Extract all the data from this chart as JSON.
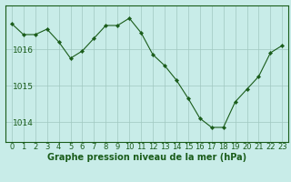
{
  "x": [
    0,
    1,
    2,
    3,
    4,
    5,
    6,
    7,
    8,
    9,
    10,
    11,
    12,
    13,
    14,
    15,
    16,
    17,
    18,
    19,
    20,
    21,
    22,
    23
  ],
  "y": [
    1016.7,
    1016.4,
    1016.4,
    1016.55,
    1016.2,
    1015.75,
    1015.95,
    1016.3,
    1016.65,
    1016.65,
    1016.85,
    1016.45,
    1015.85,
    1015.55,
    1015.15,
    1014.65,
    1014.1,
    1013.85,
    1013.85,
    1014.55,
    1014.9,
    1015.25,
    1015.9,
    1016.1
  ],
  "line_color": "#1a5c1a",
  "marker_color": "#1a5c1a",
  "bg_color": "#c8ece8",
  "grid_color": "#a0c8c0",
  "axis_color": "#1a5c1a",
  "xlabel": "Graphe pression niveau de la mer (hPa)",
  "ylabel_ticks": [
    1014,
    1015,
    1016
  ],
  "ylim": [
    1013.45,
    1017.2
  ],
  "xlim": [
    -0.5,
    23.5
  ],
  "xlabel_fontsize": 7,
  "tick_fontsize": 6.5
}
